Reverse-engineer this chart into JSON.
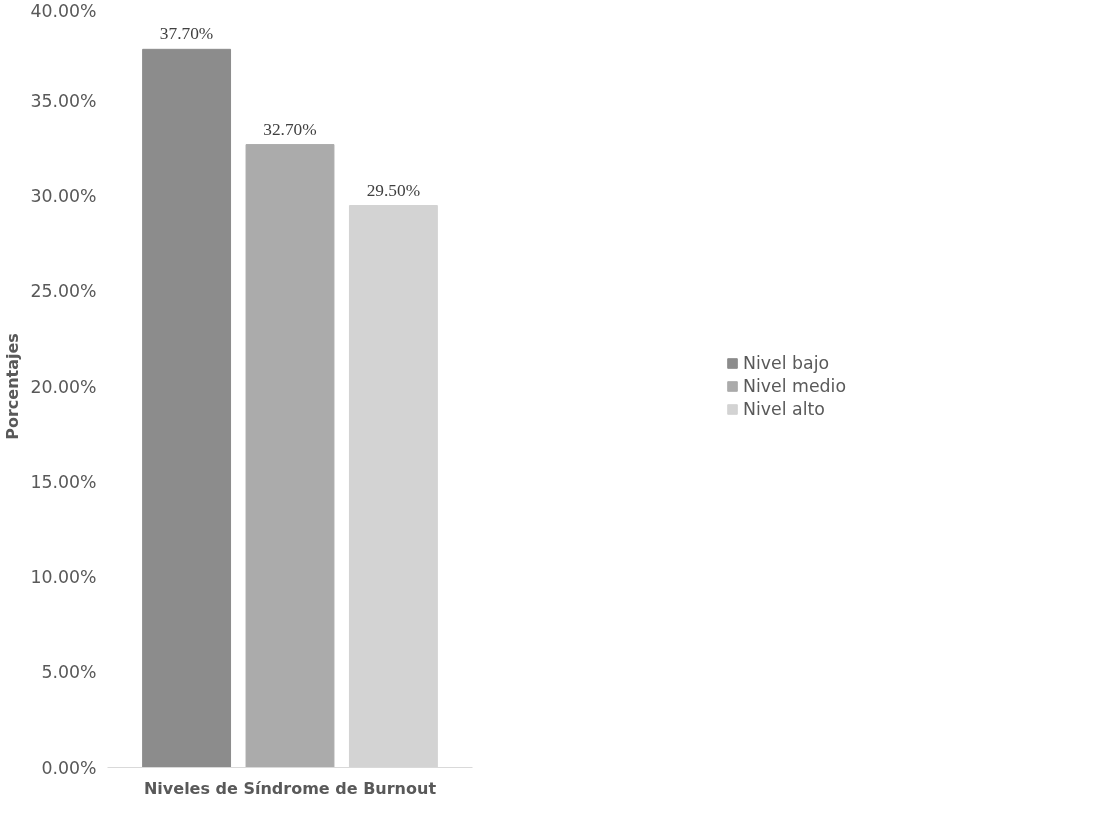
{
  "chart_data": {
    "type": "bar",
    "xlabel": "Niveles de Síndrome de Burnout",
    "ylabel": "Porcentajes",
    "categories": [
      null
    ],
    "series": [
      {
        "name": "Nivel bajo",
        "color": "#8c8c8c",
        "values": [
          37.7
        ],
        "value_labels": [
          "37.70%"
        ]
      },
      {
        "name": "Nivel medio",
        "color": "#ababab",
        "values": [
          32.7
        ],
        "value_labels": [
          "32.70%"
        ]
      },
      {
        "name": "Nivel alto",
        "color": "#d3d3d3",
        "values": [
          29.5
        ],
        "value_labels": [
          "29.50%"
        ]
      }
    ],
    "ylim": [
      0,
      40
    ],
    "yticks": [
      {
        "value": 0,
        "label": "0.00%"
      },
      {
        "value": 5,
        "label": "5.00%"
      },
      {
        "value": 10,
        "label": "10.00%"
      },
      {
        "value": 15,
        "label": "15.00%"
      },
      {
        "value": 20,
        "label": "20.00%"
      },
      {
        "value": 25,
        "label": "25.00%"
      },
      {
        "value": 30,
        "label": "30.00%"
      },
      {
        "value": 35,
        "label": "35.00%"
      },
      {
        "value": 40,
        "label": "40.00%"
      }
    ],
    "grid": false,
    "legend": "right"
  }
}
